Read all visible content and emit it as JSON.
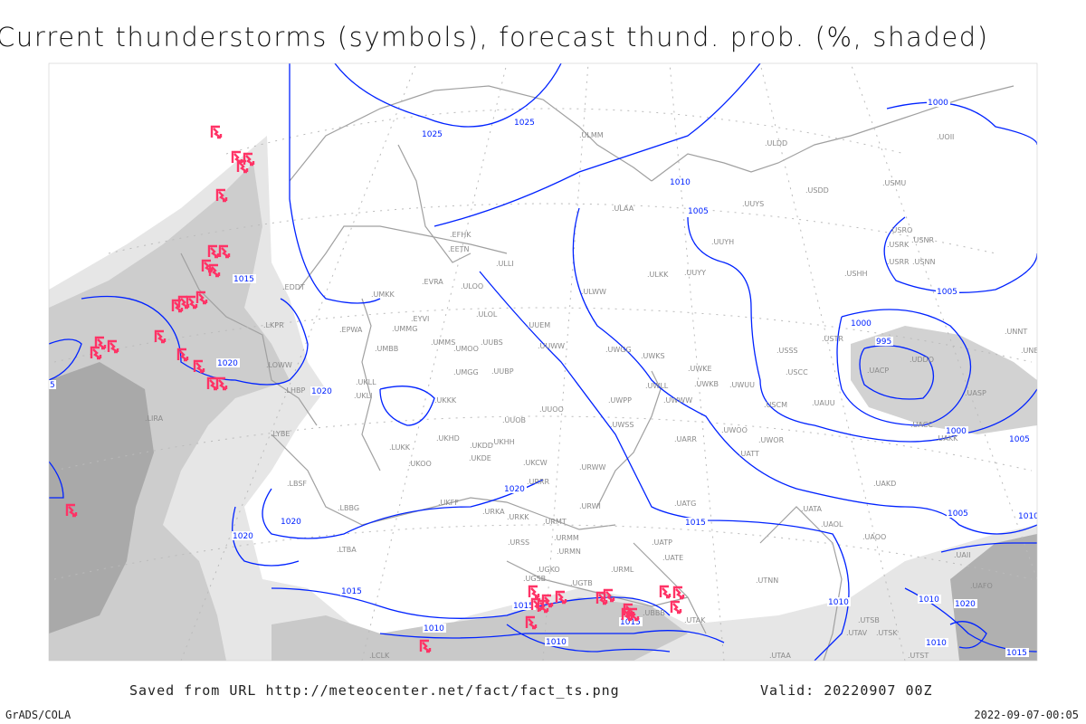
{
  "title": "Current thunderstorms (symbols), forecast thund. prob. (%, shaded)",
  "footer": {
    "source": "Saved from URL http://meteocenter.net/fact/fact_ts.png",
    "valid": "Valid: 20220907 00Z",
    "software": "GrADS/COLA",
    "timestamp": "2022-09-07-00:05"
  },
  "colors": {
    "isobar": "#0022ff",
    "thunderstorm_symbol": "#ff3366",
    "coastline": "#a0a0a0",
    "shading_light": "#e4e4e4",
    "shading_mid": "#cfcfcf",
    "shading_dark": "#a8a8a8"
  },
  "legend_symbol": "thunderstorm-symbol",
  "isobar_labels": [
    "1025",
    "1025",
    "1010",
    "1005",
    "1015",
    "1020",
    "1020",
    "1020",
    "1020",
    "1020",
    "1015",
    "1010",
    "1015",
    "1015",
    "1010",
    "1010",
    "1010",
    "1005",
    "1000",
    "995",
    "1000",
    "1005",
    "1005",
    "1010",
    "1015",
    "1020",
    "1010",
    "1015",
    "1000",
    "5"
  ],
  "stations": [
    "ULMM",
    "UOII",
    "ULDD",
    "USDD",
    "USMU",
    "ULAA",
    "UUYS",
    "UUYH",
    "ULKK",
    "UUYY",
    "USHH",
    "USRO",
    "USRK",
    "USNR",
    "USRR",
    "USNN",
    "ULWW",
    "EFHK",
    "EETN",
    "ULLI",
    "EVRA",
    "ULOO",
    "UMKK",
    "EYVI",
    "UMMG",
    "EPWA",
    "ULOL",
    "UUEM",
    "UUWW",
    "UWGG",
    "UWKS",
    "UMMS",
    "UMOO",
    "UUBS",
    "UMBB",
    "UMGG",
    "UUBP",
    "UWKE",
    "UWKB",
    "UWUU",
    "USSS",
    "USCC",
    "USTR",
    "UWLL",
    "UWWW",
    "UKLL",
    "UKLI",
    "UKKK",
    "UWPP",
    "UUOO",
    "USCM",
    "UAUU",
    "UUOB",
    "UWSS",
    "UWOO",
    "UWOR",
    "UKHH",
    "UKHD",
    "UKDD",
    "LUKK",
    "UARR",
    "UATT",
    "UKOO",
    "UKDE",
    "UKCW",
    "URWW",
    "UKFF",
    "LBSF",
    "LBBG",
    "URKA",
    "URRR",
    "URWI",
    "URKK",
    "URMT",
    "UATG",
    "UATA",
    "UAOL",
    "UAOO",
    "URSS",
    "URMM",
    "URMN",
    "UATP",
    "UATE",
    "URML",
    "LTBA",
    "UGKO",
    "UGSB",
    "UGTB",
    "UTNN",
    "UBBB",
    "UTAK",
    "LIRA",
    "LYBE",
    "LHBP",
    "LOWW",
    "LKPR",
    "EDDT",
    "UACP",
    "UAKK",
    "UASP",
    "UACC",
    "UNBB",
    "UNNT",
    "UAKD",
    "UAII",
    "UDDO",
    "UTAA",
    "LCLK",
    "UTSB",
    "UTAV",
    "UTSK",
    "UTST",
    "UAFO"
  ]
}
